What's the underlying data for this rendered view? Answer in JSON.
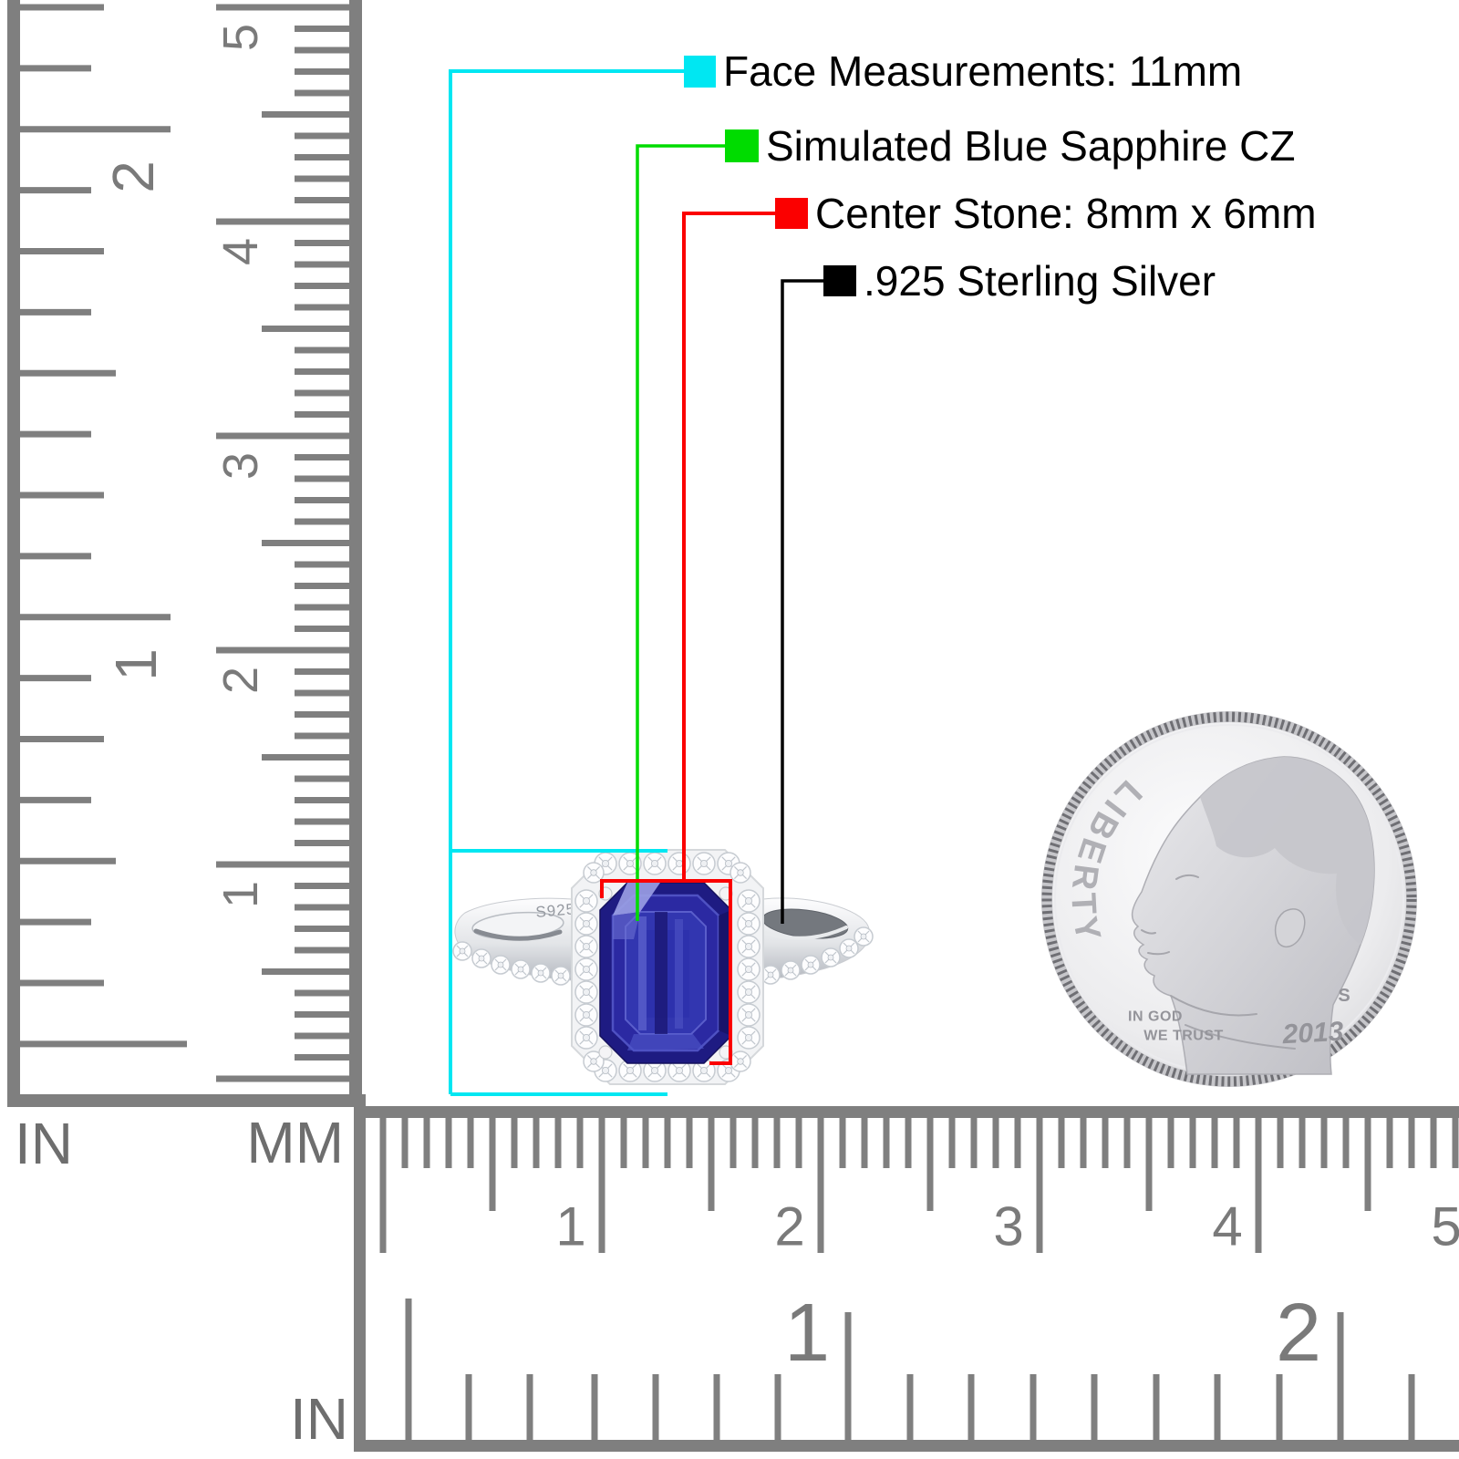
{
  "annotations": {
    "items": [
      {
        "id": "face",
        "label": "Face Measurements: 11mm",
        "color": "#00e7f2"
      },
      {
        "id": "stone_type",
        "label": "Simulated Blue Sapphire CZ",
        "color": "#00dc00"
      },
      {
        "id": "center_stone",
        "label": "Center Stone: 8mm x 6mm",
        "color": "#fb0000"
      },
      {
        "id": "metal",
        "label": ".925 Sterling Silver",
        "color": "#000000"
      }
    ]
  },
  "rulers": {
    "vertical": {
      "inch_unit": "IN",
      "mm_unit": "MM",
      "inch_numbers": [
        "2",
        "1"
      ],
      "cm_numbers": [
        "5",
        "4",
        "3",
        "2",
        "1"
      ]
    },
    "horizontal": {
      "inch_unit": "IN",
      "cm_numbers": [
        "1",
        "2",
        "3",
        "4",
        "5"
      ],
      "inch_numbers": [
        "1",
        "2"
      ]
    }
  },
  "ring": {
    "stamp": "S925"
  },
  "coin": {
    "legend": "LIBERTY",
    "motto_line1": "IN GOD",
    "motto_line2": "WE TRUST",
    "mint_mark": "S",
    "year": "2013"
  },
  "colors": {
    "cyan": "#00e7f2",
    "green": "#00dc00",
    "red": "#fb0000",
    "black": "#000000",
    "ruler_gray": "#7f7f7f",
    "number_gray": "#7a7a7a",
    "unit_gray": "#6e6e6e",
    "stone_blue": "#2b29a2",
    "silver": "#d6d6d9"
  }
}
